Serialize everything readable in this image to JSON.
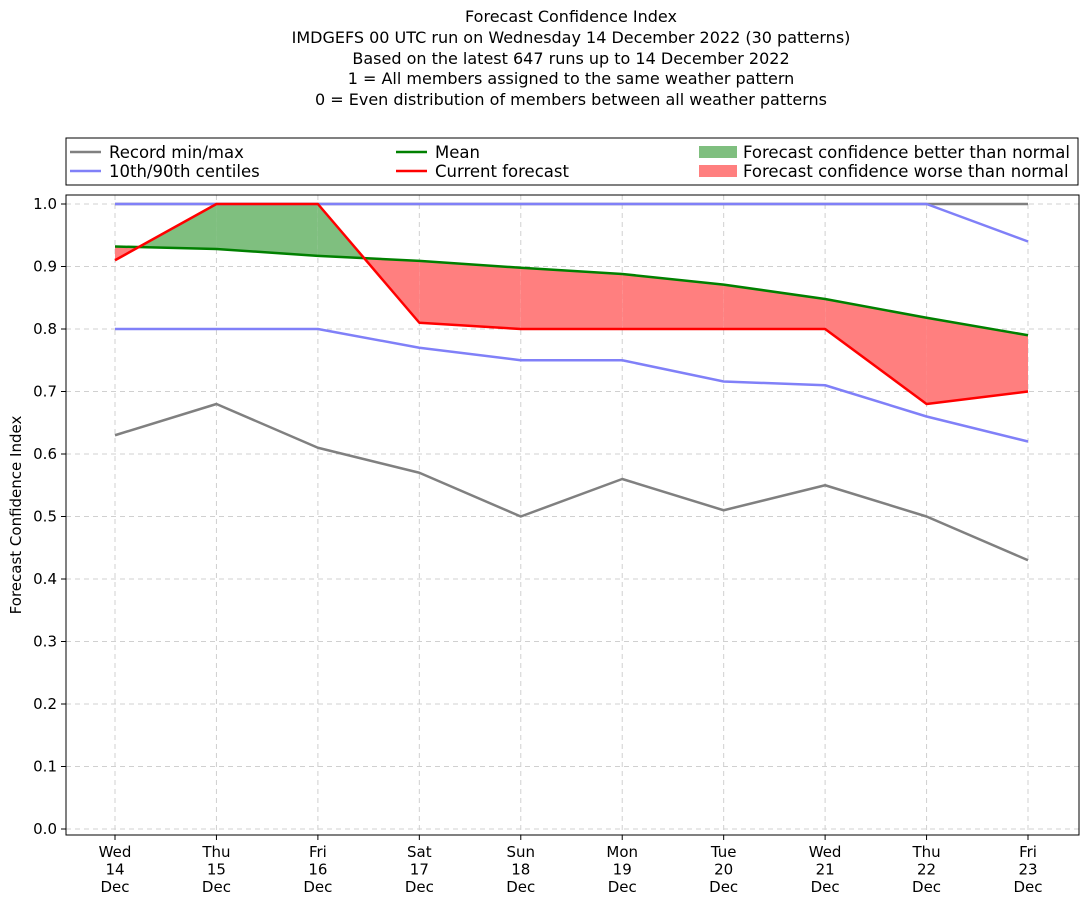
{
  "chart_data": {
    "type": "line",
    "title": "Forecast Confidence Index",
    "subtitle_lines": [
      "IMDGEFS 00 UTC run on Wednesday 14 December 2022 (30 patterns)",
      "Based on the latest 647 runs up to 14 December 2022",
      "1 = All members assigned to the same weather pattern",
      "0 = Even distribution of members between all weather patterns"
    ],
    "ylabel": "Forecast Confidence Index",
    "xlabel": "",
    "ylim": [
      0.0,
      1.0
    ],
    "yticks": [
      "0.0",
      "0.1",
      "0.2",
      "0.3",
      "0.4",
      "0.5",
      "0.6",
      "0.7",
      "0.8",
      "0.9",
      "1.0"
    ],
    "categories": [
      {
        "day": "Wed",
        "date": "14",
        "month": "Dec"
      },
      {
        "day": "Thu",
        "date": "15",
        "month": "Dec"
      },
      {
        "day": "Fri",
        "date": "16",
        "month": "Dec"
      },
      {
        "day": "Sat",
        "date": "17",
        "month": "Dec"
      },
      {
        "day": "Sun",
        "date": "18",
        "month": "Dec"
      },
      {
        "day": "Mon",
        "date": "19",
        "month": "Dec"
      },
      {
        "day": "Tue",
        "date": "20",
        "month": "Dec"
      },
      {
        "day": "Wed",
        "date": "21",
        "month": "Dec"
      },
      {
        "day": "Thu",
        "date": "22",
        "month": "Dec"
      },
      {
        "day": "Fri",
        "date": "23",
        "month": "Dec"
      }
    ],
    "series": {
      "record_min": [
        0.63,
        0.68,
        0.61,
        0.57,
        0.5,
        0.56,
        0.51,
        0.55,
        0.5,
        0.43
      ],
      "record_max": [
        1.0,
        1.0,
        1.0,
        1.0,
        1.0,
        1.0,
        1.0,
        1.0,
        1.0,
        1.0
      ],
      "centile_10": [
        0.8,
        0.8,
        0.8,
        0.77,
        0.75,
        0.75,
        0.716,
        0.71,
        0.66,
        0.62
      ],
      "centile_90": [
        1.0,
        1.0,
        1.0,
        1.0,
        1.0,
        1.0,
        1.0,
        1.0,
        1.0,
        0.94
      ],
      "mean": [
        0.932,
        0.928,
        0.917,
        0.909,
        0.898,
        0.888,
        0.871,
        0.848,
        0.818,
        0.79
      ],
      "current_forecast": [
        0.91,
        1.0,
        1.0,
        0.81,
        0.8,
        0.8,
        0.8,
        0.8,
        0.68,
        0.7
      ]
    },
    "colors": {
      "record": "#808080",
      "centile": "#8080f8",
      "mean": "#008000",
      "current": "#ff0000",
      "better_fill": "#7fbf7f",
      "worse_fill": "#ff7f7f",
      "grid": "#d0d0d0"
    },
    "grid": true,
    "legend": {
      "placement": "top",
      "entries": [
        {
          "label": "Record min/max",
          "kind": "line",
          "color": "#808080"
        },
        {
          "label": "10th/90th centiles",
          "kind": "line",
          "color": "#8080f8"
        },
        {
          "label": "Mean",
          "kind": "line",
          "color": "#008000"
        },
        {
          "label": "Current forecast",
          "kind": "line",
          "color": "#ff0000"
        },
        {
          "label": "Forecast confidence better than normal",
          "kind": "patch",
          "color": "#7fbf7f"
        },
        {
          "label": "Forecast confidence worse than normal",
          "kind": "patch",
          "color": "#ff7f7f"
        }
      ]
    }
  }
}
